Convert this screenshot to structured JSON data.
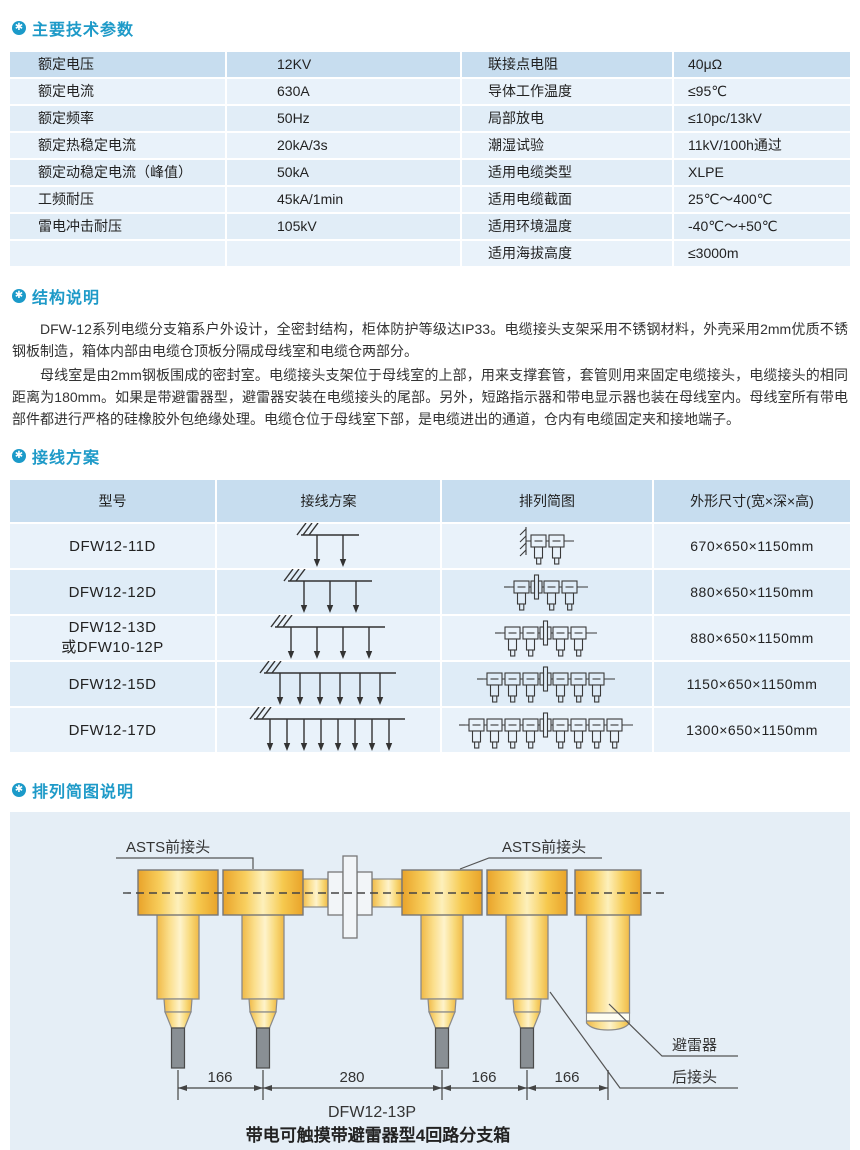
{
  "accent": "#1e9ac8",
  "sections": {
    "params_title": "主要技术参数",
    "structure_title": "结构说明",
    "wiring_title": "接线方案",
    "arrangement_title": "排列简图说明"
  },
  "structure_paragraphs": {
    "p1": "DFW-12系列电缆分支箱系户外设计，全密封结构，柜体防护等级达IP33。电缆接头支架采用不锈钢材料，外壳采用2mm优质不锈钢板制造，箱体内部由电缆仓顶板分隔成母线室和电缆仓两部分。",
    "p2": "母线室是由2mm钢板围成的密封室。电缆接头支架位于母线室的上部，用来支撑套管，套管则用来固定电缆接头，电缆接头的相同距离为180mm。如果是带避雷器型，避雷器安装在电缆接头的尾部。另外，短路指示器和带电显示器也装在母线室内。母线室所有带电部件都进行严格的硅橡胶外包绝缘处理。电缆仓位于母线室下部，是电缆进出的通道，仓内有电缆固定夹和接地端子。"
  },
  "params_table": {
    "rows": [
      {
        "l1": "额定电压",
        "v1": "12KV",
        "l2": "联接点电阻",
        "v2": "40μΩ"
      },
      {
        "l1": "额定电流",
        "v1": "630A",
        "l2": "导体工作温度",
        "v2": "≤95℃"
      },
      {
        "l1": "额定频率",
        "v1": "50Hz",
        "l2": "局部放电",
        "v2": "≤10pc/13kV"
      },
      {
        "l1": "额定热稳定电流",
        "v1": "20kA/3s",
        "l2": "潮湿试验",
        "v2": "11kV/100h通过"
      },
      {
        "l1": "额定动稳定电流（峰值）",
        "v1": "50kA",
        "l2": "适用电缆类型",
        "v2": "XLPE"
      },
      {
        "l1": "工频耐压",
        "v1": "45kA/1min",
        "l2": "适用电缆截面",
        "v2": "25℃～400℃"
      },
      {
        "l1": "雷电冲击耐压",
        "v1": "105kV",
        "l2": "适用环境温度",
        "v2": "-40℃～+50℃"
      },
      {
        "l1": "",
        "v1": "",
        "l2": "适用海拔高度",
        "v2": "≤3000m"
      }
    ]
  },
  "wiring_table": {
    "headers": [
      "型号",
      "接线方案",
      "排列简图",
      "外形尺寸(宽×深×高)"
    ],
    "rows": [
      {
        "model": "DFW12-11D",
        "model2": "",
        "arrows": 2,
        "wall": true,
        "left_units": 0,
        "right_units": 2,
        "size": "670×650×1150mm"
      },
      {
        "model": "DFW12-12D",
        "model2": "",
        "arrows": 3,
        "wall": false,
        "left_units": 1,
        "right_units": 2,
        "size": "880×650×1150mm"
      },
      {
        "model": "DFW12-13D",
        "model2": "或DFW10-12P",
        "arrows": 4,
        "wall": false,
        "left_units": 2,
        "right_units": 2,
        "size": "880×650×1150mm"
      },
      {
        "model": "DFW12-15D",
        "model2": "",
        "arrows": 6,
        "wall": false,
        "left_units": 3,
        "right_units": 3,
        "size": "1150×650×1150mm"
      },
      {
        "model": "DFW12-17D",
        "model2": "",
        "arrows": 8,
        "wall": false,
        "left_units": 4,
        "right_units": 4,
        "size": "1300×650×1150mm"
      }
    ]
  },
  "drawing": {
    "front_label_left": "ASTS前接头",
    "front_label_right": "ASTS前接头",
    "arrester_label": "避雷器",
    "rear_label": "后接头",
    "dims": [
      "166",
      "280",
      "166",
      "166"
    ],
    "model": "DFW12-13P",
    "caption": "带电可触摸带避雷器型4回路分支箱"
  }
}
